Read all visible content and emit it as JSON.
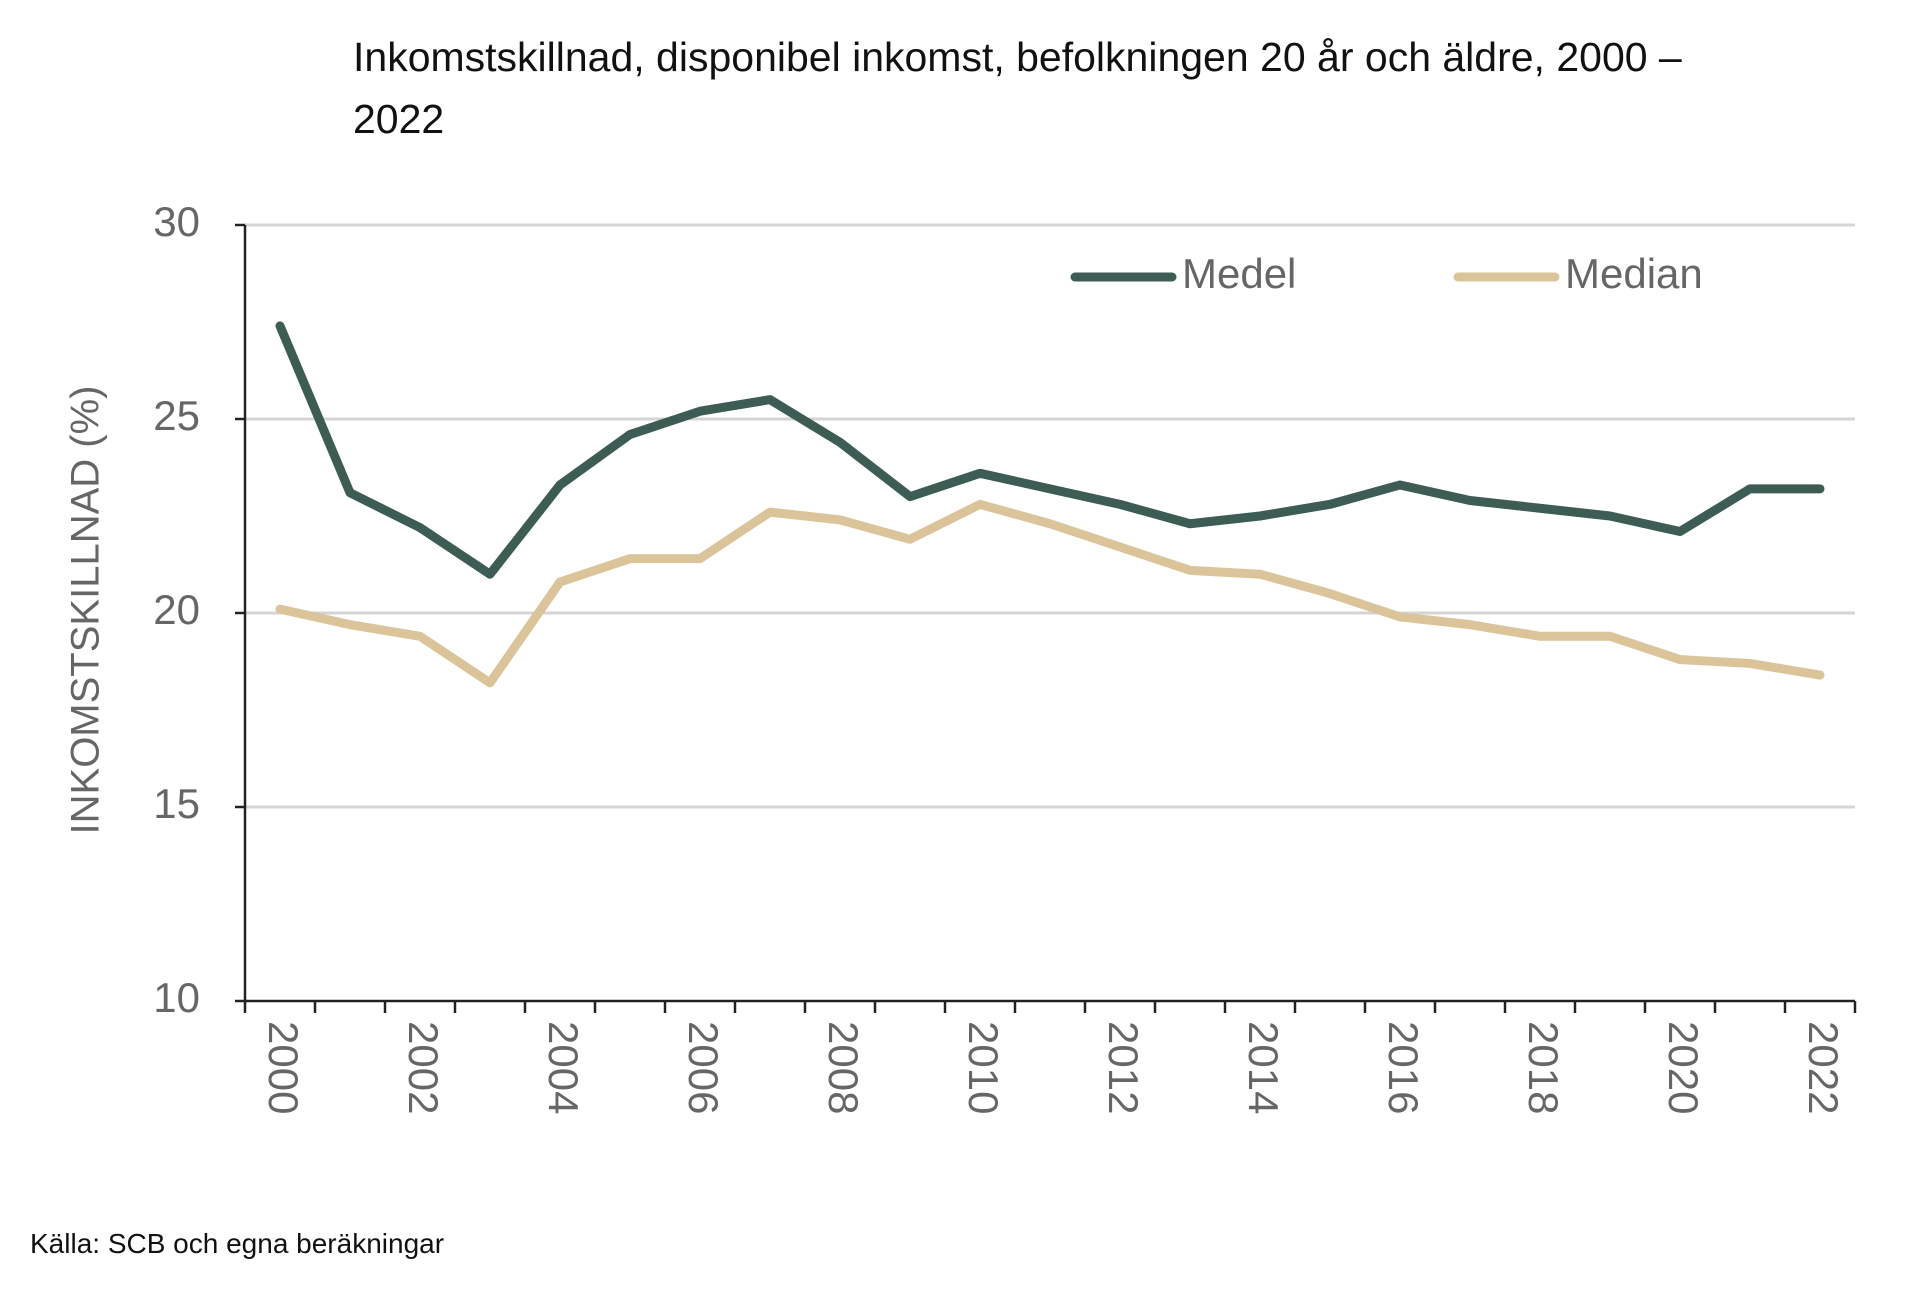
{
  "chart_data": {
    "type": "line",
    "title": "Inkomstskillnad, disponibel inkomst, befolkningen 20 år och äldre, 2000 – 2022",
    "y_label": "INKOMSTSKILLNAD (%)",
    "source": "Källa: SCB och egna beräkningar",
    "categories": [
      "2000",
      null,
      "2002",
      null,
      "2004",
      null,
      "2006",
      null,
      "2008",
      null,
      "2010",
      null,
      "2012",
      null,
      "2014",
      null,
      "2016",
      null,
      "2018",
      null,
      "2020",
      null,
      "2022"
    ],
    "series": [
      {
        "name": "Medel",
        "color": "#3d5c54",
        "values": [
          27.4,
          23.1,
          22.2,
          21.0,
          23.3,
          24.6,
          25.2,
          25.5,
          24.4,
          23.0,
          23.6,
          23.2,
          22.8,
          22.3,
          22.5,
          22.8,
          23.3,
          22.9,
          22.7,
          22.5,
          22.1,
          23.2,
          23.2
        ]
      },
      {
        "name": "Median",
        "color": "#dcc49a",
        "values": [
          20.1,
          19.7,
          19.4,
          18.2,
          20.8,
          21.4,
          21.4,
          22.6,
          22.4,
          21.9,
          22.8,
          22.3,
          21.7,
          21.1,
          21.0,
          20.5,
          19.9,
          19.7,
          19.4,
          19.4,
          18.8,
          18.7,
          18.4
        ]
      }
    ],
    "ylim": [
      10,
      30
    ],
    "yticks": [
      10,
      15,
      20,
      25,
      30
    ],
    "grid": true,
    "legend": "top-right"
  }
}
